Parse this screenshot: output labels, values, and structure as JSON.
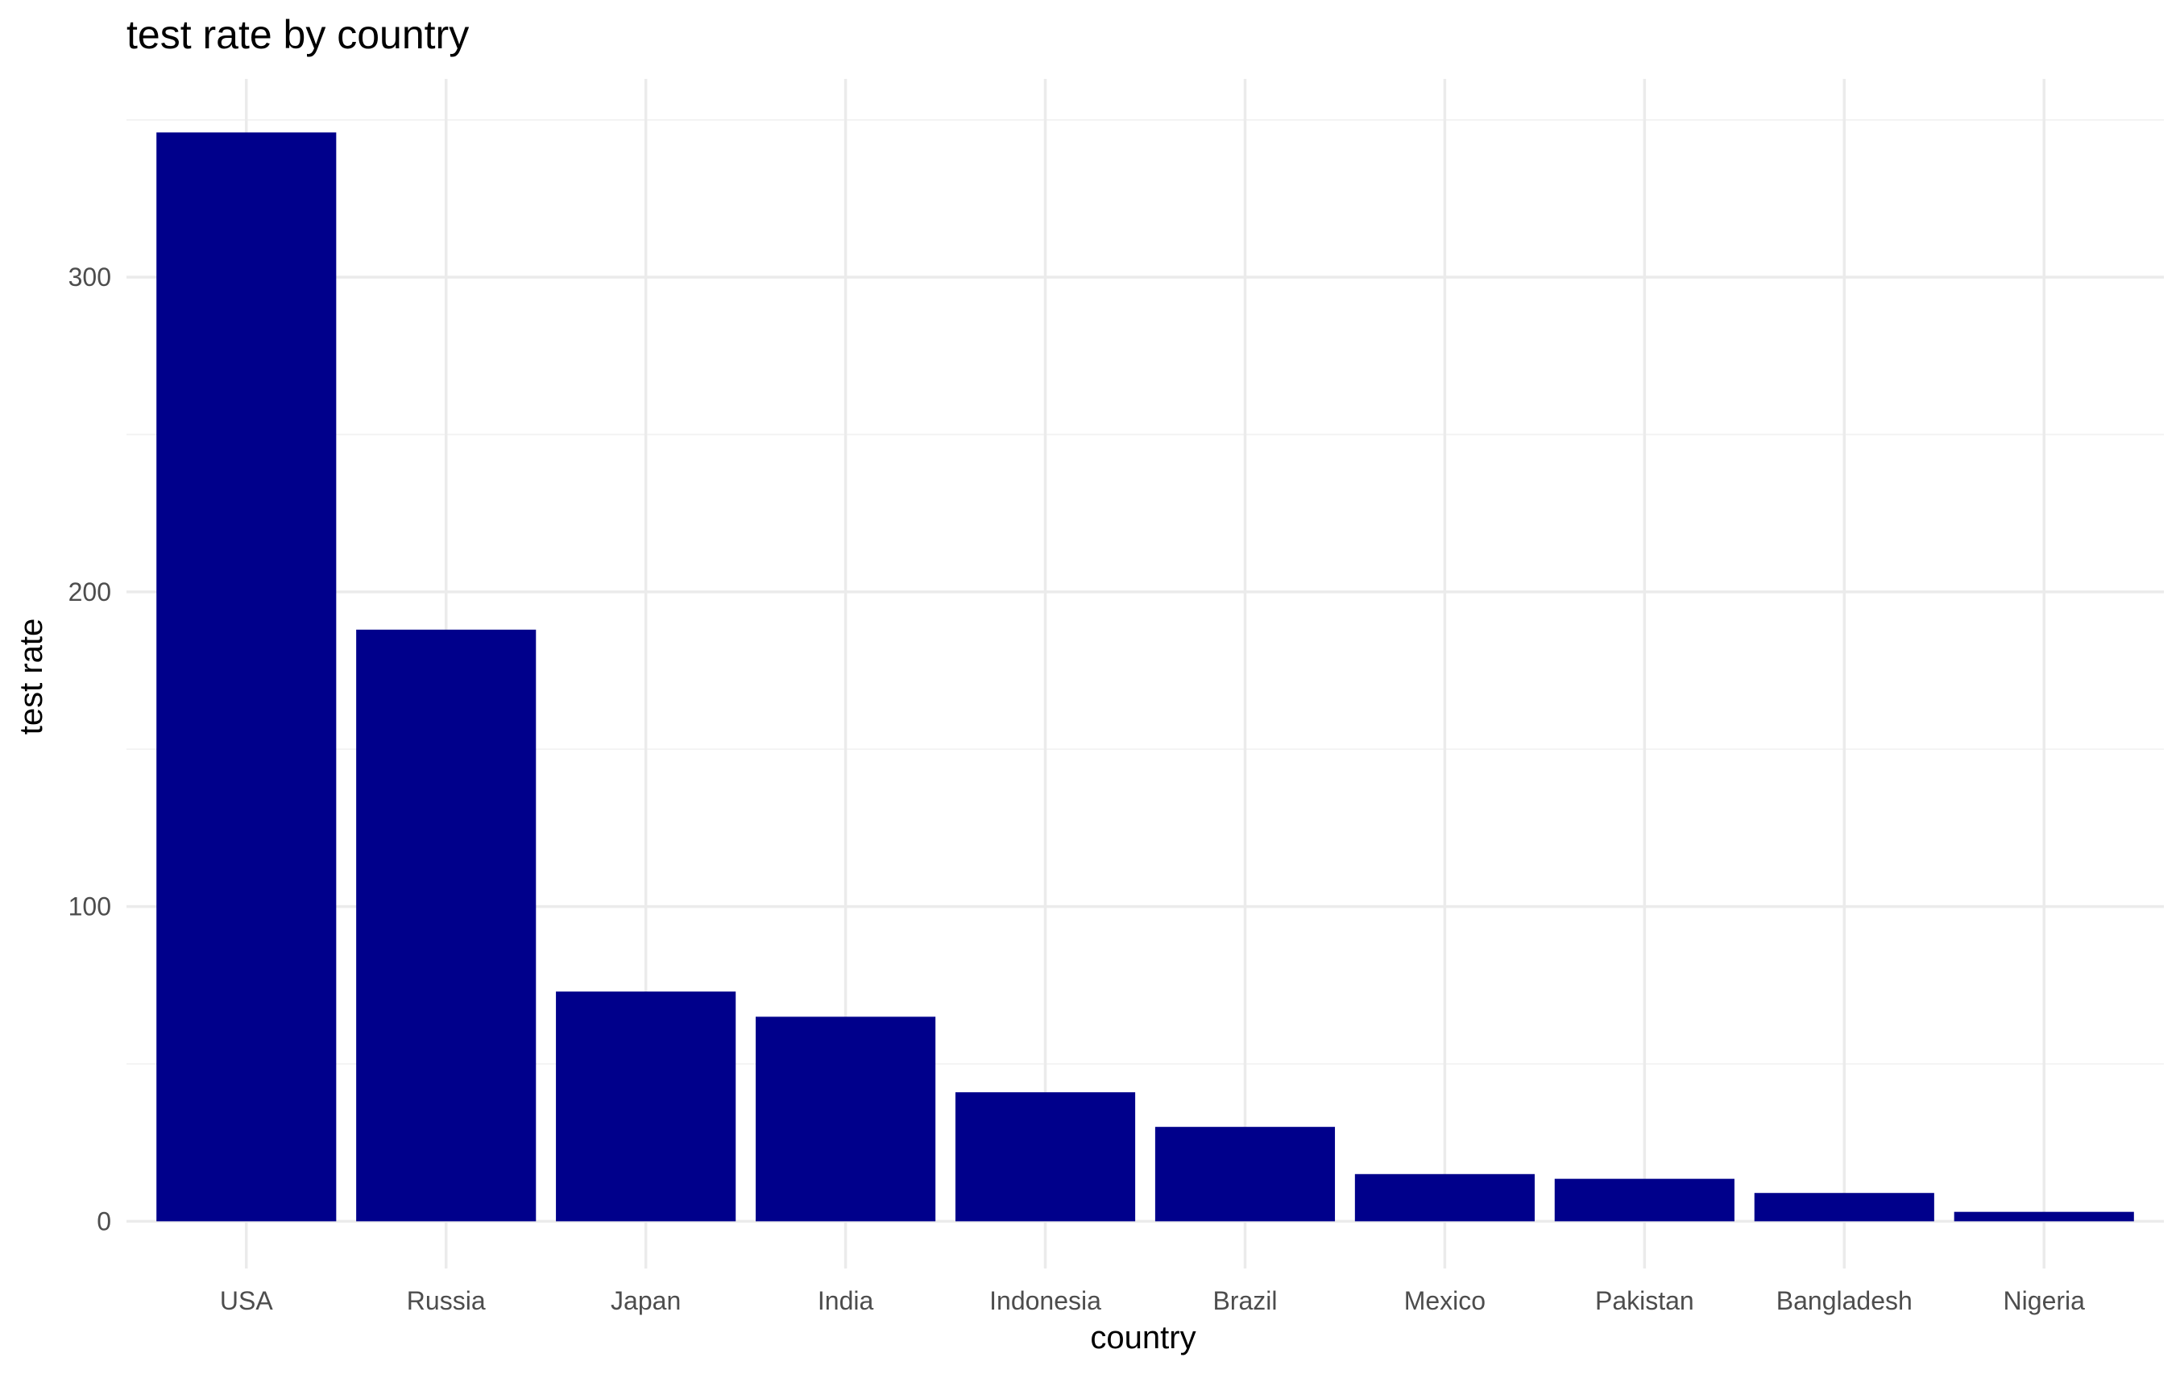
{
  "chart_data": {
    "type": "bar",
    "title": "test rate by country",
    "xlabel": "country",
    "ylabel": "test rate",
    "categories": [
      "USA",
      "Russia",
      "Japan",
      "India",
      "Indonesia",
      "Brazil",
      "Mexico",
      "Pakistan",
      "Bangladesh",
      "Nigeria"
    ],
    "values": [
      346,
      188,
      73,
      65,
      41,
      30,
      15,
      13.5,
      9,
      3
    ],
    "ylim": [
      -15,
      363
    ],
    "yticks": [
      0,
      100,
      200,
      300
    ],
    "yticks_minor": [
      50,
      150,
      250,
      350
    ],
    "grid": true,
    "legend": "none",
    "bar_color": "#00008b",
    "background": "#ffffff"
  }
}
